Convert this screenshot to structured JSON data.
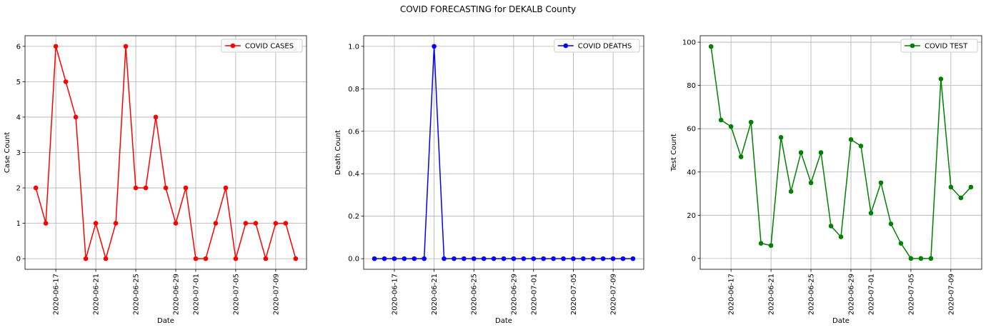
{
  "figure": {
    "suptitle": "COVID FORECASTING for DEKALB County"
  },
  "chart_data": [
    {
      "type": "line",
      "title": "",
      "xlabel": "Date",
      "ylabel": "Case Count",
      "grid": true,
      "legend_position": "top-right",
      "color": "#ff0000",
      "marker": "circle",
      "x_tick_labels": [
        "2020-06-17",
        "2020-06-21",
        "2020-06-25",
        "2020-06-29",
        "2020-07-01",
        "2020-07-05",
        "2020-07-09"
      ],
      "y_ticks": [
        0,
        1,
        2,
        3,
        4,
        5,
        6
      ],
      "y_tick_labels": [
        "0",
        "1",
        "2",
        "3",
        "4",
        "5",
        "6"
      ],
      "ylim": [
        -0.3,
        6.3
      ],
      "series": [
        {
          "name": "COVID CASES",
          "x": [
            "2020-06-15",
            "2020-06-16",
            "2020-06-17",
            "2020-06-18",
            "2020-06-19",
            "2020-06-20",
            "2020-06-21",
            "2020-06-22",
            "2020-06-23",
            "2020-06-24",
            "2020-06-25",
            "2020-06-26",
            "2020-06-27",
            "2020-06-28",
            "2020-06-29",
            "2020-06-30",
            "2020-07-01",
            "2020-07-02",
            "2020-07-03",
            "2020-07-04",
            "2020-07-05",
            "2020-07-06",
            "2020-07-07",
            "2020-07-08",
            "2020-07-09",
            "2020-07-10",
            "2020-07-11"
          ],
          "values": [
            2,
            1,
            6,
            5,
            4,
            0,
            1,
            0,
            1,
            6,
            2,
            2,
            4,
            2,
            1,
            2,
            0,
            0,
            1,
            2,
            0,
            1,
            1,
            0,
            1,
            1,
            0
          ]
        }
      ]
    },
    {
      "type": "line",
      "title": "",
      "xlabel": "Date",
      "ylabel": "Death Count",
      "grid": true,
      "legend_position": "top-right",
      "color": "#0000ff",
      "marker": "circle",
      "x_tick_labels": [
        "2020-06-17",
        "2020-06-21",
        "2020-06-25",
        "2020-06-29",
        "2020-07-01",
        "2020-07-05",
        "2020-07-09"
      ],
      "y_ticks": [
        0,
        0.2,
        0.4,
        0.6,
        0.8,
        1.0
      ],
      "y_tick_labels": [
        "0.0",
        "0.2",
        "0.4",
        "0.6",
        "0.8",
        "1.0"
      ],
      "ylim": [
        -0.05,
        1.05
      ],
      "series": [
        {
          "name": "COVID DEATHS",
          "x": [
            "2020-06-15",
            "2020-06-16",
            "2020-06-17",
            "2020-06-18",
            "2020-06-19",
            "2020-06-20",
            "2020-06-21",
            "2020-06-22",
            "2020-06-23",
            "2020-06-24",
            "2020-06-25",
            "2020-06-26",
            "2020-06-27",
            "2020-06-28",
            "2020-06-29",
            "2020-06-30",
            "2020-07-01",
            "2020-07-02",
            "2020-07-03",
            "2020-07-04",
            "2020-07-05",
            "2020-07-06",
            "2020-07-07",
            "2020-07-08",
            "2020-07-09",
            "2020-07-10",
            "2020-07-11"
          ],
          "values": [
            0,
            0,
            0,
            0,
            0,
            0,
            1,
            0,
            0,
            0,
            0,
            0,
            0,
            0,
            0,
            0,
            0,
            0,
            0,
            0,
            0,
            0,
            0,
            0,
            0,
            0,
            0
          ]
        }
      ]
    },
    {
      "type": "line",
      "title": "",
      "xlabel": "Date",
      "ylabel": "Test Count",
      "grid": true,
      "legend_position": "top-right",
      "color": "#008000",
      "marker": "circle",
      "x_tick_labels": [
        "2020-06-17",
        "2020-06-21",
        "2020-06-25",
        "2020-06-29",
        "2020-07-01",
        "2020-07-05",
        "2020-07-09"
      ],
      "y_ticks": [
        0,
        20,
        40,
        60,
        80,
        100
      ],
      "y_tick_labels": [
        "0",
        "20",
        "40",
        "60",
        "80",
        "100"
      ],
      "ylim": [
        -5,
        103
      ],
      "series": [
        {
          "name": "COVID TEST",
          "x": [
            "2020-06-15",
            "2020-06-16",
            "2020-06-17",
            "2020-06-18",
            "2020-06-19",
            "2020-06-20",
            "2020-06-21",
            "2020-06-22",
            "2020-06-23",
            "2020-06-24",
            "2020-06-25",
            "2020-06-26",
            "2020-06-27",
            "2020-06-28",
            "2020-06-29",
            "2020-06-30",
            "2020-07-01",
            "2020-07-02",
            "2020-07-03",
            "2020-07-04",
            "2020-07-05",
            "2020-07-06",
            "2020-07-07",
            "2020-07-08",
            "2020-07-09",
            "2020-07-10",
            "2020-07-11"
          ],
          "values": [
            98,
            64,
            61,
            47,
            63,
            7,
            6,
            56,
            31,
            49,
            35,
            49,
            15,
            10,
            55,
            52,
            21,
            35,
            16,
            7,
            0,
            0,
            0,
            83,
            33,
            28,
            33
          ]
        }
      ]
    }
  ]
}
